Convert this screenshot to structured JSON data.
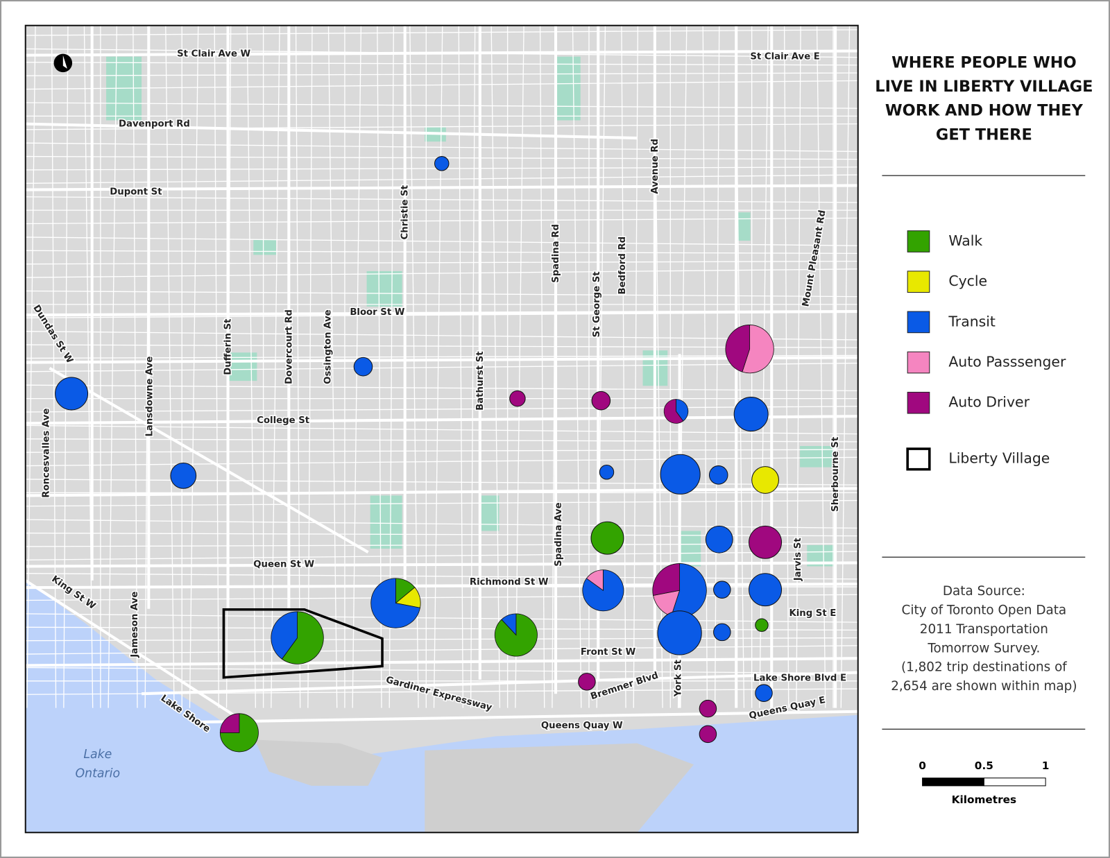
{
  "title_lines": [
    "WHERE PEOPLE WHO",
    "LIVE IN LIBERTY VILLAGE",
    "WORK AND HOW THEY",
    "GET THERE"
  ],
  "legend": [
    {
      "label": "Walk",
      "color": "#33a300"
    },
    {
      "label": "Cycle",
      "color": "#e8e800"
    },
    {
      "label": "Transit",
      "color": "#0a5ae6"
    },
    {
      "label": "Auto  Passsenger",
      "color": "#f585c0"
    },
    {
      "label": "Auto  Driver",
      "color": "#a0087f"
    }
  ],
  "boundary_label": "Liberty Village",
  "source_lines": [
    "Data Source:",
    "City of Toronto Open Data",
    "2011 Transportation",
    "Tomorrow Survey.",
    "(1,802 trip destinations of",
    "2,654 are shown within map)"
  ],
  "scale": {
    "ticks": [
      "0",
      "0.5",
      "1"
    ],
    "unit": "Kilometres"
  },
  "lake_lines": [
    "Lake",
    "Ontario"
  ],
  "streets": [
    "St Clair Ave W",
    "St Clair Ave E",
    "Davenport  Rd",
    "Dupont  St",
    "Christie St",
    "Spadina Rd",
    "Avenue Rd",
    "St George St",
    "Bedford Rd",
    "Mount Pleasant Rd",
    "Dundas St W",
    "Roncesvalles Ave",
    "Lansdowne  Ave",
    "Dufferin St",
    "Dovercourt Rd",
    "Ossington  Ave",
    "Bloor St W",
    "Bathurst St",
    "College  St",
    "Spadina Ave",
    "Sherbourne St",
    "Jarvis St",
    "Queen St W",
    "Richmond St W",
    "King St E",
    "King St W",
    "Jameson Ave",
    "Front St W",
    "York St",
    "Bremner  Blvd",
    "Gardiner  Expressway",
    "Lake Shore Blvd E",
    "Queens Quay E",
    "Queens Quay W",
    "Lake Shore"
  ],
  "pies": [
    [
      0,
      0,
      100,
      0,
      0
    ],
    [
      0,
      0,
      100,
      0,
      0
    ],
    [
      0,
      0,
      100,
      0,
      0
    ],
    [
      0,
      0,
      100,
      0,
      0
    ],
    [
      0,
      0,
      0,
      0,
      100
    ],
    [
      0,
      0,
      0,
      0,
      100
    ],
    [
      0,
      0,
      40,
      0,
      60
    ],
    [
      0,
      0,
      0,
      55,
      45
    ],
    [
      0,
      0,
      100,
      0,
      0
    ],
    [
      0,
      0,
      100,
      0,
      0
    ],
    [
      0,
      0,
      100,
      0,
      0
    ],
    [
      0,
      100,
      0,
      0,
      0
    ],
    [
      0,
      0,
      100,
      0,
      0
    ],
    [
      100,
      0,
      0,
      0,
      0
    ],
    [
      0,
      0,
      100,
      0,
      0
    ],
    [
      0,
      0,
      0,
      0,
      100
    ],
    [
      0,
      0,
      85,
      15,
      0
    ],
    [
      0,
      0,
      55,
      17,
      28
    ],
    [
      0,
      0,
      100,
      0,
      0
    ],
    [
      0,
      0,
      100,
      0,
      0
    ],
    [
      14,
      14,
      72,
      0,
      0
    ],
    [
      88,
      0,
      12,
      0,
      0
    ],
    [
      0,
      0,
      100,
      0,
      0
    ],
    [
      0,
      0,
      100,
      0,
      0
    ],
    [
      100,
      0,
      0,
      0,
      0
    ],
    [
      60,
      0,
      40,
      0,
      0
    ],
    [
      0,
      0,
      0,
      0,
      100
    ],
    [
      0,
      0,
      0,
      0,
      100
    ],
    [
      0,
      0,
      0,
      0,
      100
    ],
    [
      0,
      0,
      100,
      0,
      0
    ],
    [
      75,
      0,
      0,
      0,
      25
    ]
  ]
}
